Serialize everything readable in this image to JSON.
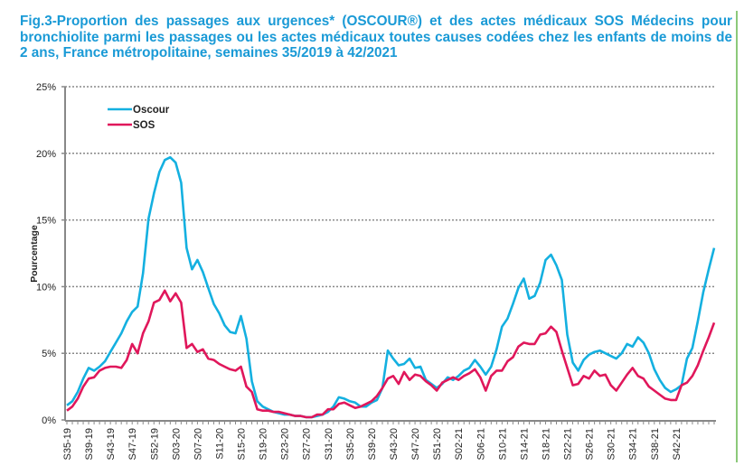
{
  "title": "Fig.3-Proportion des passages aux urgences* (OSCOUR®) et des actes médicaux SOS Médecins pour bronchiolite parmi les passages ou les actes médicaux toutes causes codées chez les enfants de moins de 2 ans,  France métropolitaine, semaines 35/2019 à 42/2021",
  "chart_data": {
    "type": "line",
    "title": "Fig.3-Proportion des passages aux urgences* (OSCOUR®) et des actes médicaux SOS Médecins pour bronchiolite parmi les passages ou les actes médicaux toutes causes codées chez les enfants de moins de 2 ans,  France métropolitaine, semaines 35/2019 à 42/2021",
    "xlabel": "",
    "ylabel": "Pourcentage",
    "ylim": [
      0,
      25
    ],
    "yticks": [
      "0%",
      "5%",
      "10%",
      "15%",
      "20%",
      "25%"
    ],
    "grid": true,
    "legend_position": "top-left",
    "xtick_labels": [
      "S35-19",
      "S39-19",
      "S43-19",
      "S47-19",
      "S52-19",
      "S03-20",
      "S07-20",
      "S11-20",
      "S15-20",
      "S19-20",
      "S23-20",
      "S27-20",
      "S31-20",
      "S35-20",
      "S39-20",
      "S43-20",
      "S47-20",
      "S51-20",
      "S02-21",
      "S06-21",
      "S10-21",
      "S14-21",
      "S18-21",
      "S22-21",
      "S26-21",
      "S30-21",
      "S34-21",
      "S38-21",
      "S42-21"
    ],
    "xtick_every": 4,
    "series": [
      {
        "name": "Oscour",
        "color": "#14b0e0",
        "values": [
          1.1,
          1.4,
          2.1,
          3.1,
          3.9,
          3.7,
          4.0,
          4.4,
          5.1,
          5.8,
          6.5,
          7.4,
          8.1,
          8.5,
          11.0,
          15.1,
          17.0,
          18.6,
          19.5,
          19.7,
          19.3,
          17.8,
          12.9,
          11.3,
          12.0,
          11.1,
          9.9,
          8.7,
          8.0,
          7.1,
          6.6,
          6.5,
          7.8,
          6.1,
          2.9,
          1.4,
          1.0,
          0.8,
          0.6,
          0.5,
          0.4,
          0.4,
          0.3,
          0.3,
          0.2,
          0.2,
          0.3,
          0.4,
          0.6,
          1.0,
          1.7,
          1.6,
          1.4,
          1.3,
          1.0,
          1.0,
          1.3,
          1.5,
          2.4,
          5.2,
          4.6,
          4.1,
          4.2,
          4.6,
          3.9,
          4.0,
          3.0,
          2.7,
          2.4,
          2.7,
          3.2,
          3.0,
          3.3,
          3.7,
          3.9,
          4.5,
          4.0,
          3.4,
          4.0,
          5.3,
          7.0,
          7.6,
          8.7,
          9.9,
          10.6,
          9.1,
          9.3,
          10.3,
          12.0,
          12.4,
          11.6,
          10.5,
          6.4,
          4.3,
          3.7,
          4.5,
          4.9,
          5.1,
          5.2,
          5.0,
          4.8,
          4.6,
          5.0,
          5.7,
          5.5,
          6.2,
          5.8,
          5.0,
          3.8,
          3.0,
          2.4,
          2.1,
          2.3,
          2.6,
          4.6,
          5.4,
          7.4,
          9.6,
          11.3,
          12.9
        ]
      },
      {
        "name": "SOS",
        "color": "#e0175b",
        "values": [
          0.7,
          1.0,
          1.6,
          2.5,
          3.1,
          3.2,
          3.7,
          3.9,
          4.0,
          4.0,
          3.9,
          4.5,
          5.7,
          5.0,
          6.5,
          7.4,
          8.8,
          9.0,
          9.7,
          8.9,
          9.5,
          8.8,
          5.4,
          5.7,
          5.1,
          5.3,
          4.6,
          4.5,
          4.2,
          4.0,
          3.8,
          3.7,
          4.0,
          2.5,
          2.1,
          0.8,
          0.7,
          0.7,
          0.6,
          0.6,
          0.5,
          0.4,
          0.3,
          0.3,
          0.2,
          0.2,
          0.4,
          0.4,
          0.8,
          0.8,
          1.2,
          1.3,
          1.1,
          0.9,
          1.0,
          1.2,
          1.4,
          1.8,
          2.4,
          3.1,
          3.3,
          2.7,
          3.6,
          3.0,
          3.4,
          3.3,
          2.9,
          2.6,
          2.2,
          2.8,
          3.0,
          3.2,
          3.0,
          3.3,
          3.5,
          3.8,
          3.2,
          2.2,
          3.3,
          3.7,
          3.7,
          4.4,
          4.7,
          5.5,
          5.8,
          5.7,
          5.7,
          6.4,
          6.5,
          7.0,
          6.6,
          5.2,
          3.9,
          2.6,
          2.7,
          3.3,
          3.1,
          3.7,
          3.3,
          3.4,
          2.6,
          2.2,
          2.8,
          3.4,
          3.9,
          3.3,
          3.1,
          2.5,
          2.2,
          1.9,
          1.6,
          1.5,
          1.5,
          2.6,
          2.8,
          3.3,
          4.1,
          5.2,
          6.2,
          7.3
        ]
      }
    ]
  }
}
